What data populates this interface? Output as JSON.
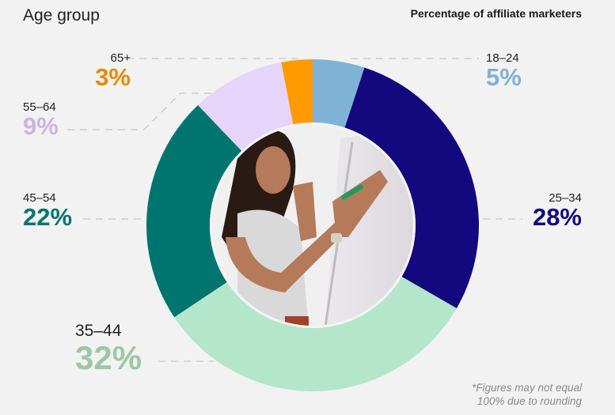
{
  "header": {
    "title": "Age group",
    "subtitle": "Percentage of affiliate marketers"
  },
  "footnote": {
    "line1": "*Figures may not equal",
    "line2": "100% due to rounding"
  },
  "labels": {
    "a1824": {
      "range": "18–24",
      "pct": "5%"
    },
    "a2534": {
      "range": "25–34",
      "pct": "28%"
    },
    "a3544": {
      "range": "35–44",
      "pct": "32%"
    },
    "a4554": {
      "range": "45–54",
      "pct": "22%"
    },
    "a5564": {
      "range": "55–64",
      "pct": "9%"
    },
    "a65": {
      "range": "65+",
      "pct": "3%"
    }
  },
  "chart_data": {
    "type": "pie",
    "variant": "donut",
    "title": "Age group",
    "subtitle": "Percentage of affiliate marketers",
    "categories": [
      "18–24",
      "25–34",
      "35–44",
      "45–54",
      "55–64",
      "65+"
    ],
    "values": [
      5,
      28,
      32,
      22,
      9,
      3
    ],
    "unit": "%",
    "colors": [
      "#7fb3d5",
      "#14087e",
      "#b4e6cb",
      "#00756f",
      "#e6d5fb",
      "#ff9a00"
    ],
    "label_colors": [
      "#7fb3d5",
      "#14087e",
      "#9cc7a8",
      "#00756f",
      "#c9b5e0",
      "#e58a00"
    ],
    "start_angle_deg": 0,
    "direction": "clockwise",
    "center_image": "photo of woman writing on a flip chart",
    "footnote": "*Figures may not equal 100% due to rounding",
    "legend": "none (direct labels)"
  }
}
